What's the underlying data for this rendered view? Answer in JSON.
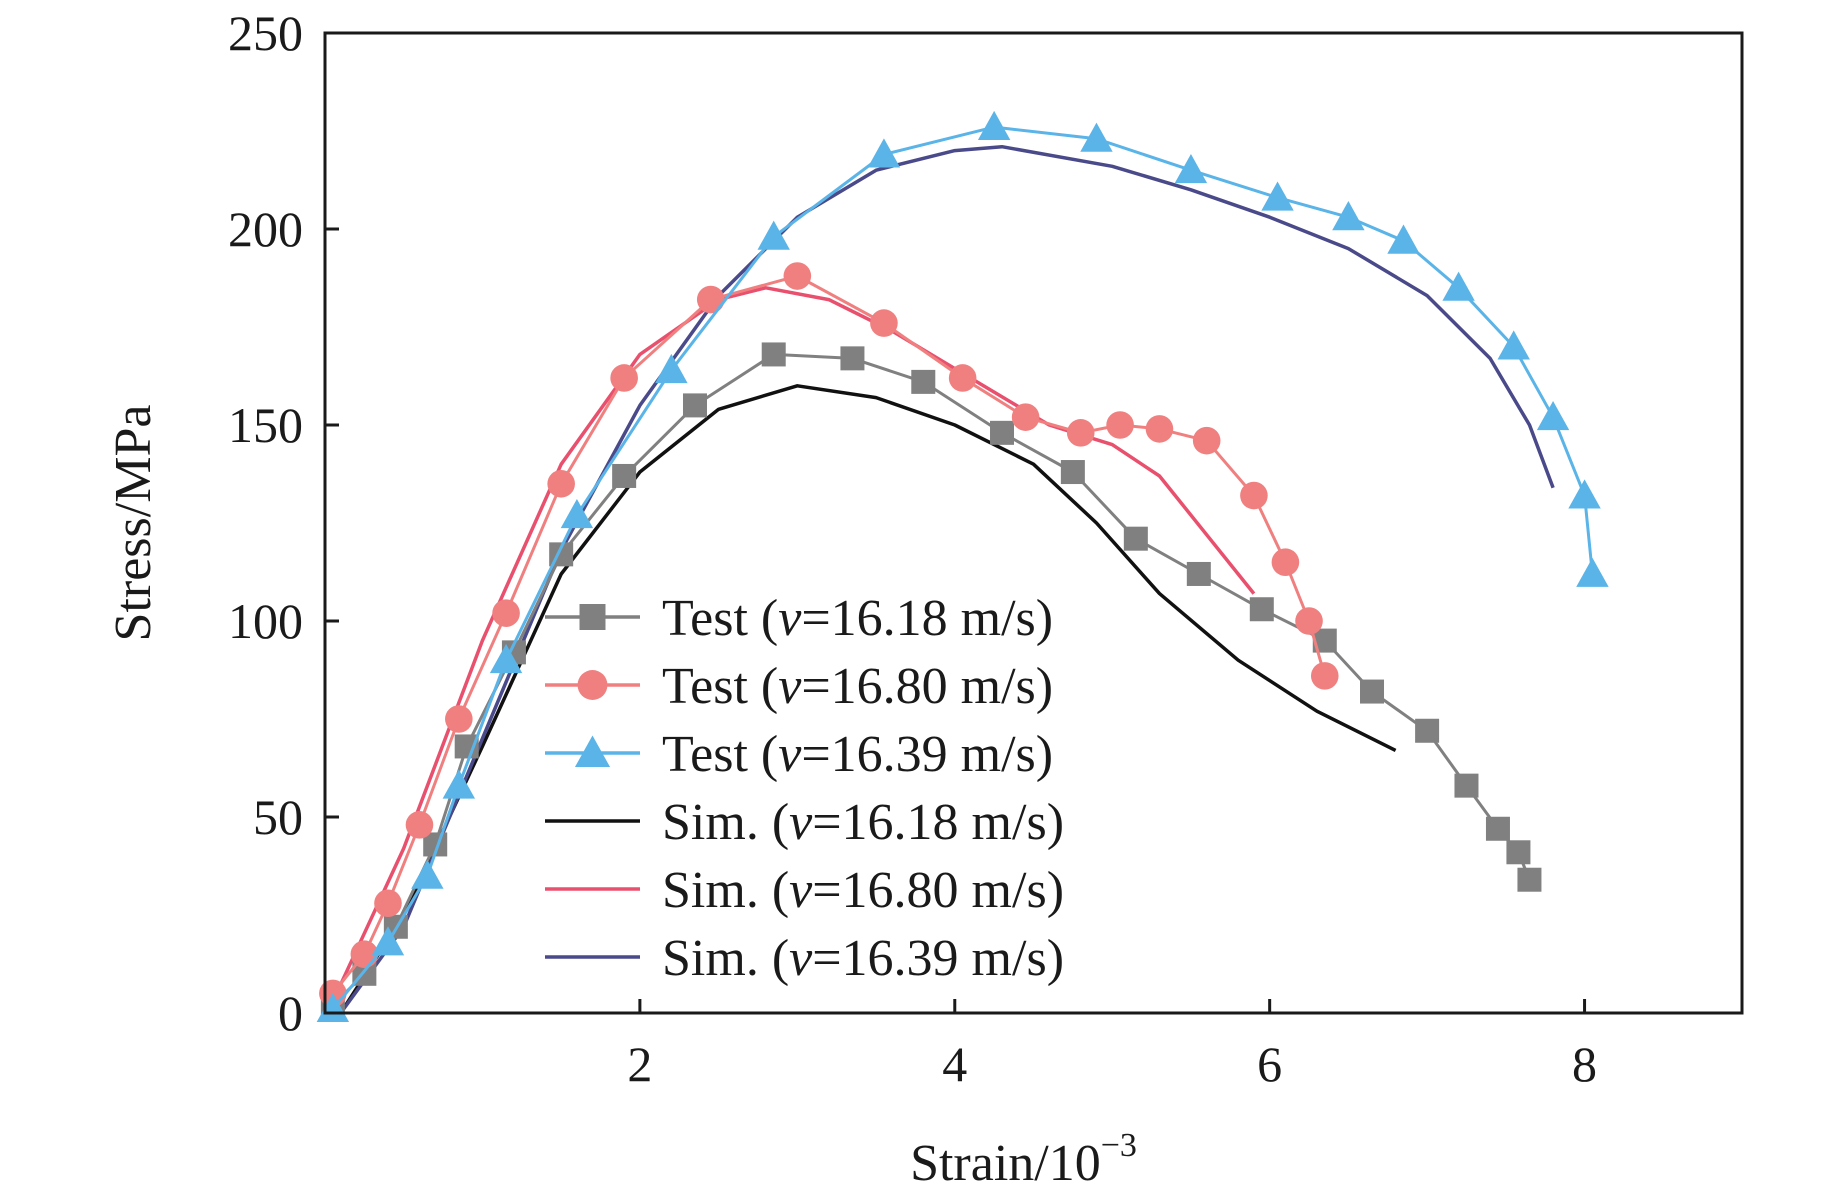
{
  "chart_data": {
    "type": "line",
    "xlabel": "Strain/10",
    "xlabel_exponent": "−3",
    "ylabel": "Stress/MPa",
    "xlim": [
      0,
      9
    ],
    "ylim": [
      0,
      250
    ],
    "xticks": [
      2,
      4,
      6,
      8
    ],
    "yticks": [
      0,
      50,
      100,
      150,
      200,
      250
    ],
    "grid": false,
    "legend_position": "center",
    "series": [
      {
        "name": "Test (v=16.18 m/s)",
        "legend_prefix": "Test (",
        "legend_var": "v",
        "legend_suffix": "=16.18 m/s)",
        "kind": "test",
        "marker": "square",
        "color": "#808080",
        "x": [
          0.05,
          0.25,
          0.45,
          0.7,
          0.9,
          1.2,
          1.5,
          1.9,
          2.35,
          2.85,
          3.35,
          3.8,
          4.3,
          4.75,
          5.15,
          5.55,
          5.95,
          6.35,
          6.65,
          7.0,
          7.25,
          7.45,
          7.58,
          7.65
        ],
        "y": [
          2,
          10,
          22,
          43,
          68,
          92,
          117,
          137,
          155,
          168,
          167,
          161,
          148,
          138,
          121,
          112,
          103,
          95,
          82,
          72,
          58,
          47,
          41,
          34
        ]
      },
      {
        "name": "Test (v=16.80 m/s)",
        "legend_prefix": "Test (",
        "legend_var": "v",
        "legend_suffix": "=16.80 m/s)",
        "kind": "test",
        "marker": "circle",
        "color": "#f08080",
        "x": [
          0.05,
          0.25,
          0.4,
          0.6,
          0.85,
          1.15,
          1.5,
          1.9,
          2.45,
          3.0,
          3.55,
          4.05,
          4.45,
          4.8,
          5.05,
          5.3,
          5.6,
          5.9,
          6.1,
          6.25,
          6.35
        ],
        "y": [
          5,
          15,
          28,
          48,
          75,
          102,
          135,
          162,
          182,
          188,
          176,
          162,
          152,
          148,
          150,
          149,
          146,
          132,
          115,
          100,
          86
        ]
      },
      {
        "name": "Test (v=16.39 m/s)",
        "legend_prefix": "Test (",
        "legend_var": "v",
        "legend_suffix": "=16.39 m/s)",
        "kind": "test",
        "marker": "triangle",
        "color": "#5ab4e8",
        "x": [
          0.05,
          0.4,
          0.65,
          0.85,
          1.15,
          1.6,
          2.2,
          2.85,
          3.55,
          4.25,
          4.9,
          5.5,
          6.05,
          6.5,
          6.85,
          7.2,
          7.55,
          7.8,
          8.0,
          8.05
        ],
        "y": [
          1,
          18,
          35,
          58,
          90,
          127,
          164,
          198,
          219,
          226,
          223,
          215,
          208,
          203,
          197,
          185,
          170,
          152,
          132,
          112
        ]
      },
      {
        "name": "Sim. (v=16.18 m/s)",
        "legend_prefix": "Sim. (",
        "legend_var": "v",
        "legend_suffix": "=16.18 m/s)",
        "kind": "sim",
        "color": "#111111",
        "x": [
          0.1,
          0.5,
          1.0,
          1.5,
          2.0,
          2.5,
          3.0,
          3.5,
          4.0,
          4.5,
          4.9,
          5.3,
          5.8,
          6.3,
          6.8
        ],
        "y": [
          0,
          25,
          68,
          112,
          138,
          154,
          160,
          157,
          150,
          140,
          125,
          107,
          90,
          77,
          67
        ]
      },
      {
        "name": "Sim. (v=16.80 m/s)",
        "legend_prefix": "Sim. (",
        "legend_var": "v",
        "legend_suffix": "=16.80 m/s)",
        "kind": "sim",
        "color": "#e8506e",
        "x": [
          0.05,
          0.5,
          1.0,
          1.5,
          2.0,
          2.5,
          2.8,
          3.2,
          3.6,
          4.1,
          4.6,
          5.0,
          5.3,
          5.6,
          5.9
        ],
        "y": [
          3,
          42,
          95,
          140,
          168,
          182,
          185,
          182,
          174,
          162,
          150,
          145,
          137,
          122,
          107
        ]
      },
      {
        "name": "Sim. (v=16.39 m/s)",
        "legend_prefix": "Sim. (",
        "legend_var": "v",
        "legend_suffix": "=16.39 m/s)",
        "kind": "sim",
        "color": "#4a4a8a",
        "x": [
          0.1,
          0.5,
          1.0,
          1.5,
          2.0,
          2.5,
          3.0,
          3.5,
          4.0,
          4.3,
          5.0,
          5.5,
          6.0,
          6.5,
          7.0,
          7.4,
          7.65,
          7.8
        ],
        "y": [
          0,
          22,
          70,
          118,
          155,
          183,
          203,
          215,
          220,
          221,
          216,
          210,
          203,
          195,
          183,
          167,
          150,
          134
        ]
      }
    ]
  }
}
